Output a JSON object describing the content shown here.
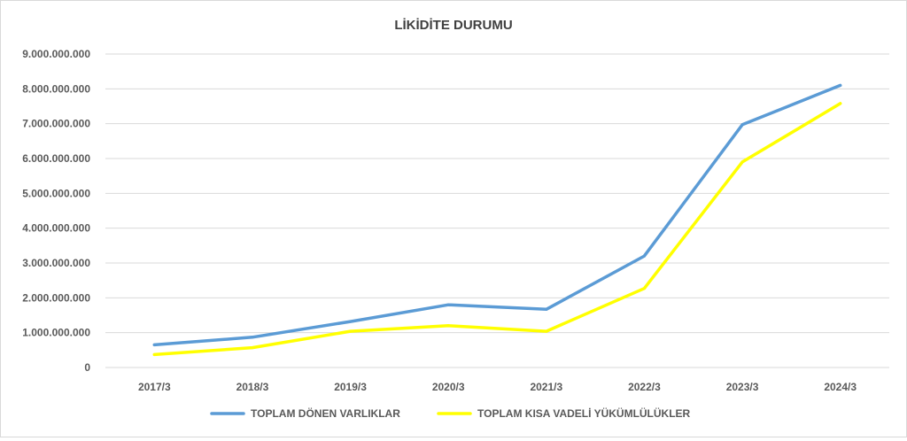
{
  "chart_data": {
    "type": "line",
    "title": "LİKİDİTE DURUMU",
    "xlabel": "",
    "ylabel": "",
    "categories": [
      "2017/3",
      "2018/3",
      "2019/3",
      "2020/3",
      "2021/3",
      "2022/3",
      "2023/3",
      "2024/3"
    ],
    "ylim": [
      0,
      9000000000
    ],
    "yticks": [
      0,
      1000000000,
      2000000000,
      3000000000,
      4000000000,
      5000000000,
      6000000000,
      7000000000,
      8000000000,
      9000000000
    ],
    "ytick_labels": [
      "0",
      "1.000.000.000",
      "2.000.000.000",
      "3.000.000.000",
      "4.000.000.000",
      "5.000.000.000",
      "6.000.000.000",
      "7.000.000.000",
      "8.000.000.000",
      "9.000.000.000"
    ],
    "grid": true,
    "legend_position": "bottom",
    "series": [
      {
        "name": "TOPLAM DÖNEN VARLIKLAR",
        "color": "#5b9bd5",
        "values": [
          650000000,
          870000000,
          1320000000,
          1800000000,
          1670000000,
          3200000000,
          6970000000,
          8100000000
        ]
      },
      {
        "name": "TOPLAM KISA VADELİ YÜKÜMLÜLÜKLER",
        "color": "#ffff00",
        "values": [
          370000000,
          570000000,
          1040000000,
          1200000000,
          1040000000,
          2270000000,
          5900000000,
          7580000000
        ]
      }
    ]
  }
}
